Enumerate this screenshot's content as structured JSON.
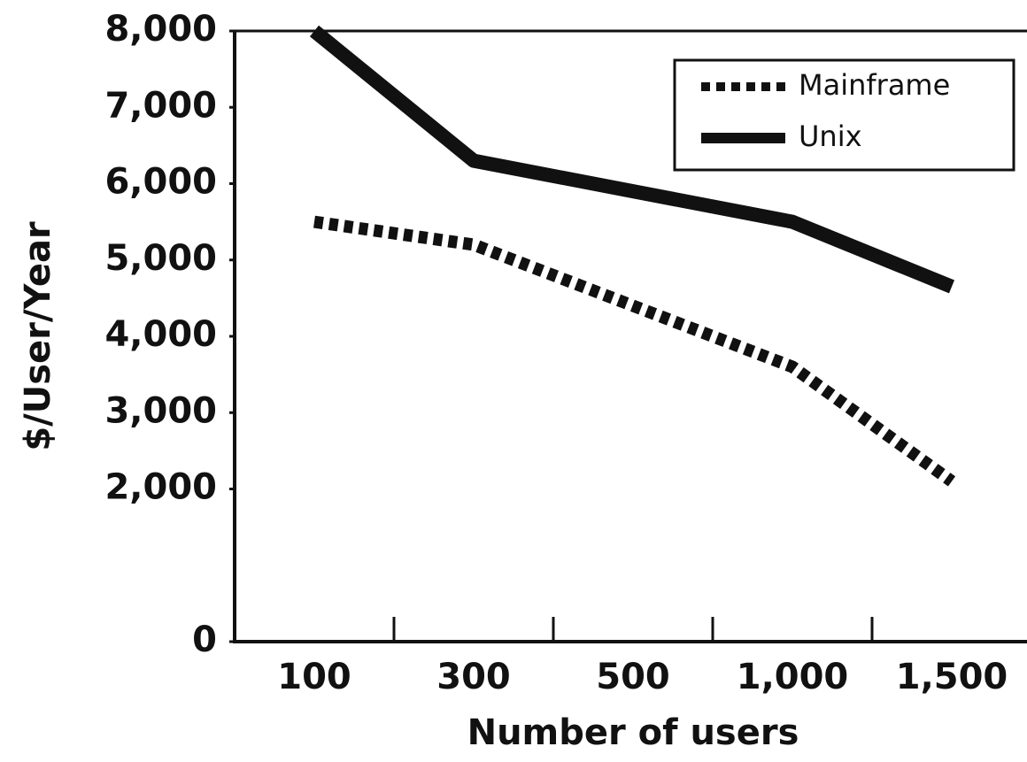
{
  "chart_data": {
    "type": "line",
    "x_label": "Number of users",
    "y_label": "$/User/Year",
    "categories": [
      "100",
      "300",
      "500",
      "1,000",
      "1,500"
    ],
    "series": [
      {
        "name": "Mainframe",
        "color": "#111111",
        "style": "dotted",
        "values": [
          5500,
          5200,
          4400,
          3600,
          2100
        ]
      },
      {
        "name": "Unix",
        "color": "#111111",
        "style": "solid",
        "values": [
          8000,
          6300,
          5900,
          5500,
          4650
        ]
      }
    ],
    "ylim": [
      0,
      8000
    ],
    "yticks": [
      0,
      {
        "value": 2000,
        "label": "2,000"
      },
      {
        "value": 3000,
        "label": "3,000"
      },
      {
        "value": 4000,
        "label": "4,000"
      },
      {
        "value": 5000,
        "label": "5,000"
      },
      {
        "value": 6000,
        "label": "6,000"
      },
      {
        "value": 7000,
        "label": "7,000"
      },
      {
        "value": 8000,
        "label": "8,000"
      }
    ],
    "legend": "upper right",
    "grid": false
  }
}
